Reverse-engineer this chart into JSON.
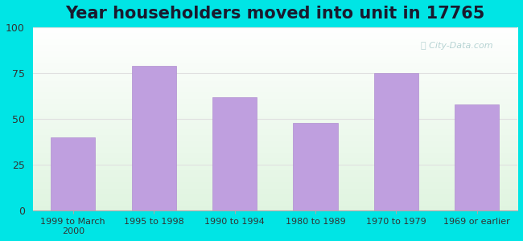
{
  "title": "Year householders moved into unit in 17765",
  "categories": [
    "1999 to March\n2000",
    "1995 to 1998",
    "1990 to 1994",
    "1980 to 1989",
    "1970 to 1979",
    "1969 or earlier"
  ],
  "values": [
    40,
    79,
    62,
    48,
    75,
    58
  ],
  "bar_color": "#bf9fdf",
  "bar_edge_color": "#b090d0",
  "ylim": [
    0,
    100
  ],
  "yticks": [
    0,
    25,
    50,
    75,
    100
  ],
  "title_fontsize": 15,
  "tick_fontsize": 9,
  "outer_bg_color": "#00e5e5",
  "grid_color": "#e0e0e0",
  "watermark_text": "ⓘ City-Data.com",
  "watermark_color": "#aacccc"
}
